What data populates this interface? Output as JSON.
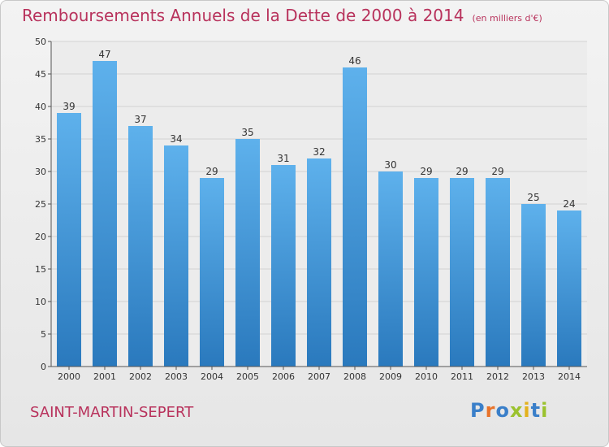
{
  "chart_data": {
    "type": "bar",
    "title": "Remboursements Annuels de la Dette de 2000 à 2014",
    "unit_note": "(en milliers d'€)",
    "categories": [
      "2000",
      "2001",
      "2002",
      "2003",
      "2004",
      "2005",
      "2006",
      "2007",
      "2008",
      "2009",
      "2010",
      "2011",
      "2012",
      "2013",
      "2014"
    ],
    "values": [
      39,
      47,
      37,
      34,
      29,
      35,
      31,
      32,
      46,
      30,
      29,
      29,
      29,
      25,
      24
    ],
    "ylim": [
      0,
      50
    ],
    "yticks": [
      0,
      5,
      10,
      15,
      20,
      25,
      30,
      35,
      40,
      45,
      50
    ],
    "grid": "horizontal",
    "colors": {
      "bar_top": "#5eb1ec",
      "bar_bottom": "#2a79bd",
      "title": "#b8325c"
    }
  },
  "footer": {
    "commune": "SAINT-MARTIN-SEPERT",
    "logo_letters": [
      "P",
      "r",
      "o",
      "x",
      "i",
      "t",
      "i"
    ],
    "logo_colors": [
      "#3a7fc9",
      "#e8732a",
      "#3a7fc9",
      "#9bc22e",
      "#e3b11c",
      "#3a7fc9",
      "#9bc22e"
    ]
  }
}
